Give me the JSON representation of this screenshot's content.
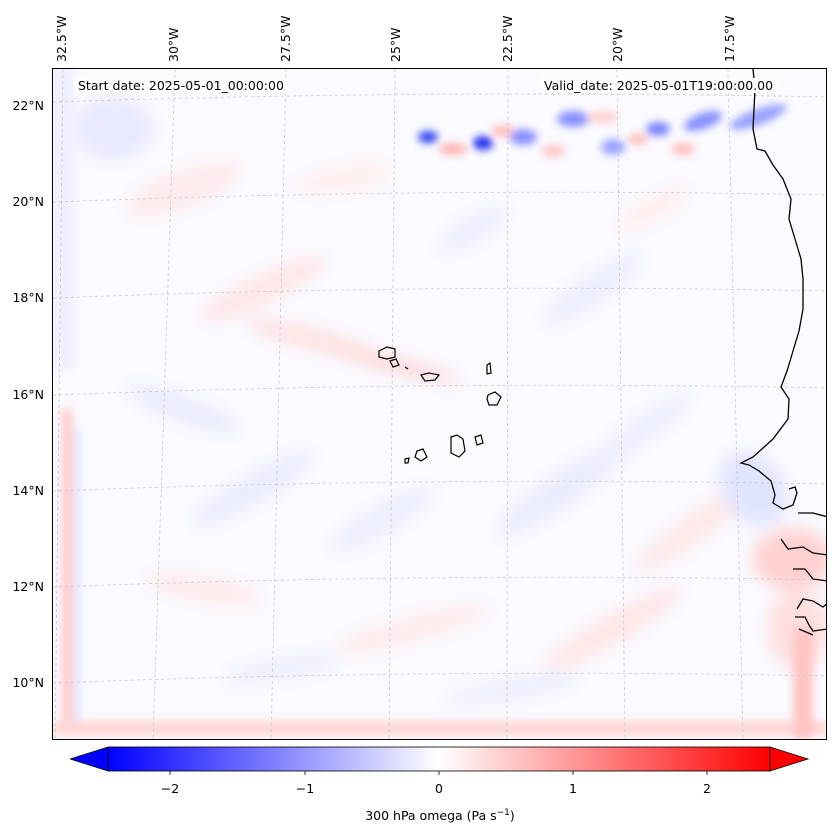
{
  "header": {
    "start_date": "Start date: 2025-05-01_00:00:00",
    "valid_date": "Valid_date: 2025-05-01T19:00:00.00"
  },
  "lat_labels": [
    "22°N",
    "20°N",
    "18°N",
    "16°N",
    "14°N",
    "12°N",
    "10°N"
  ],
  "lon_labels": [
    "32.5°W",
    "30°W",
    "27.5°W",
    "25°W",
    "22.5°W",
    "20°W",
    "17.5°W"
  ],
  "colorbar": {
    "label_main": "300 hPa omega (Pa s",
    "label_sup": "−1",
    "label_close": ")",
    "ticks": [
      "−2",
      "−1",
      "0",
      "1",
      "2"
    ],
    "range": [
      -2.5,
      2.5
    ],
    "min_color": "#0000ff",
    "mid_color": "#ffffff",
    "max_color": "#ff0000"
  },
  "colors": {
    "background_field": "#fafaff",
    "coastline": "#000000",
    "gridline": "#cccccc"
  }
}
